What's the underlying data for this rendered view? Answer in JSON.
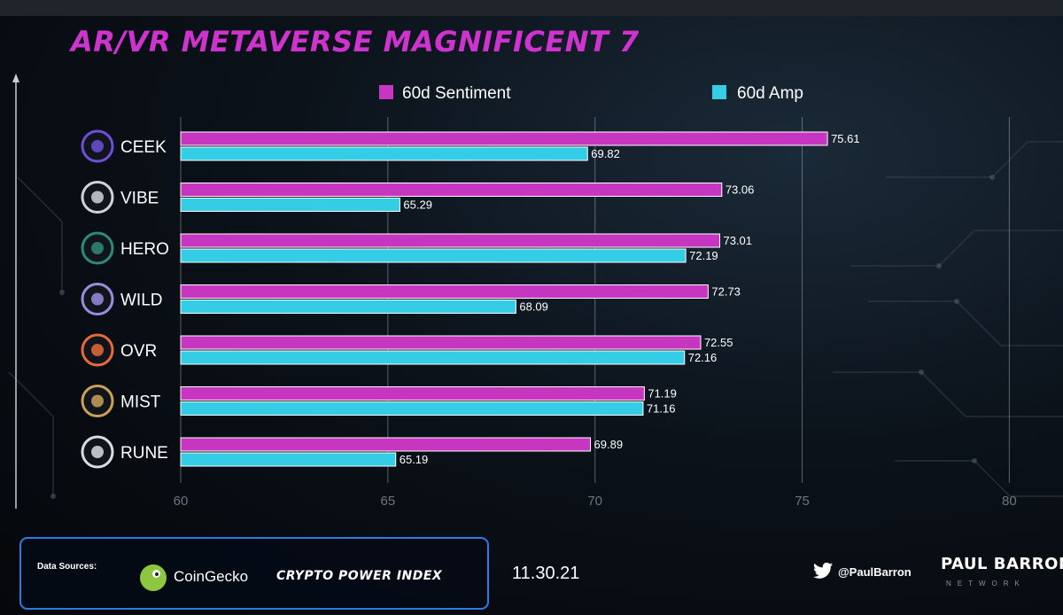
{
  "title": "AR/VR METAVERSE MAGNIFICENT 7",
  "chart_data": {
    "type": "bar",
    "orientation": "horizontal",
    "title": "AR/VR METAVERSE MAGNIFICENT 7",
    "categories": [
      "CEEK",
      "VIBE",
      "HERO",
      "WILD",
      "OVR",
      "MIST",
      "RUNE"
    ],
    "series": [
      {
        "name": "60d Sentiment",
        "color": "#c736c1",
        "values": [
          75.61,
          73.06,
          73.01,
          72.73,
          72.55,
          71.19,
          69.89
        ]
      },
      {
        "name": "60d Amp",
        "color": "#35cde6",
        "values": [
          69.82,
          65.29,
          72.19,
          68.09,
          72.16,
          71.16,
          65.19
        ]
      }
    ],
    "value_labels": [
      [
        "75.61",
        "73.06",
        "73.01",
        "72.73",
        "72.55",
        "71.19",
        "69.89"
      ],
      [
        "69.82",
        "65.29",
        "72.19",
        "68.09",
        "72.16",
        "71.16",
        "65.19"
      ]
    ],
    "xlim": [
      60,
      80
    ],
    "x_ticks": [
      "60",
      "65",
      "70",
      "75",
      "80"
    ],
    "grid": "vertical",
    "legend_position": "top"
  },
  "footer": {
    "sources_label": "Data Sources:",
    "source_1": "CoinGecko",
    "source_2": "CRYPTO POWER INDEX",
    "date": "11.30.21",
    "twitter_handle": "@PaulBarron",
    "brand": "PAUL BARRON",
    "brand_sub": "NETWORK"
  },
  "icons": {
    "categories": [
      "ceek-icon",
      "vibe-icon",
      "hero-icon",
      "wild-icon",
      "ovr-icon",
      "mist-icon",
      "rune-icon"
    ],
    "footer": [
      "coingecko-logo",
      "twitter-icon"
    ]
  },
  "colors": {
    "title": "#cf33cd",
    "sentiment": "#c736c1",
    "amp": "#35cde6",
    "footer_border": "#2b7be0"
  }
}
